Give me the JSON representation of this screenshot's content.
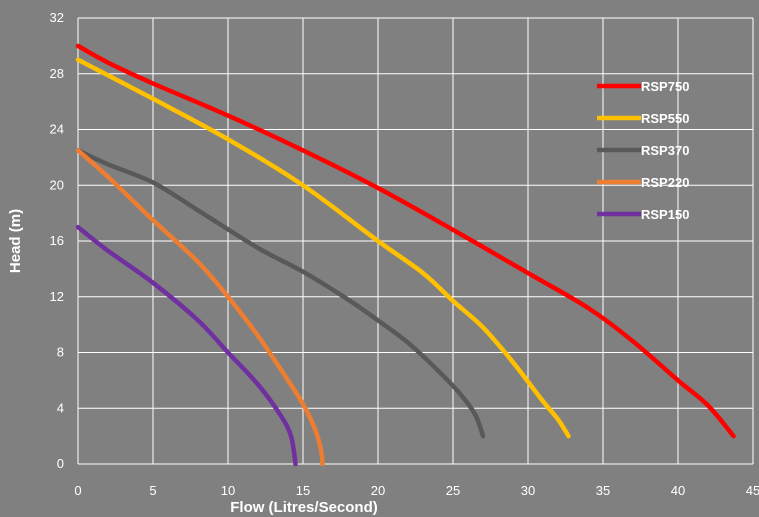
{
  "chart_data": {
    "type": "line",
    "title": "",
    "xlabel": "Flow (Litres/Second)",
    "ylabel": "Head (m)",
    "xlim": [
      0,
      45
    ],
    "ylim": [
      0,
      32
    ],
    "xticks": [
      "0",
      "5",
      "10",
      "15",
      "20",
      "25",
      "30",
      "35",
      "40",
      "45"
    ],
    "yticks": [
      "0",
      "4",
      "8",
      "12",
      "16",
      "20",
      "24",
      "28",
      "32"
    ],
    "grid": true,
    "legend_position": "top-right",
    "background": "#808080",
    "series": [
      {
        "name": "RSP750",
        "color": "#ff0000",
        "x": [
          0,
          2,
          5,
          10,
          15,
          20,
          25,
          30,
          34,
          37,
          40,
          42,
          43.7
        ],
        "y": [
          30,
          28.8,
          27.3,
          25,
          22.5,
          19.8,
          16.8,
          13.7,
          11.2,
          8.8,
          6,
          4.2,
          2
        ]
      },
      {
        "name": "RSP550",
        "color": "#ffc000",
        "x": [
          0,
          5,
          10,
          15,
          20,
          23,
          25,
          27,
          29,
          31,
          32,
          32.7
        ],
        "y": [
          29,
          26.2,
          23.3,
          20,
          16,
          13.7,
          11.7,
          9.8,
          7.3,
          4.5,
          3.2,
          2
        ]
      },
      {
        "name": "RSP370",
        "color": "#595959",
        "x": [
          0,
          2,
          5,
          8,
          12,
          15,
          18,
          20,
          22,
          24,
          25.5,
          26.5,
          27
        ],
        "y": [
          22.5,
          21.5,
          20.2,
          18.2,
          15.5,
          13.8,
          11.8,
          10.3,
          8.7,
          6.7,
          5,
          3.5,
          2
        ]
      },
      {
        "name": "RSP220",
        "color": "#ed7d31",
        "x": [
          0,
          2,
          5,
          8,
          10,
          12,
          14,
          15,
          15.8,
          16.2,
          16.3
        ],
        "y": [
          22.5,
          20.6,
          17.5,
          14.5,
          12,
          9.2,
          6,
          4.3,
          2.5,
          1,
          0
        ]
      },
      {
        "name": "RSP150",
        "color": "#7030a0",
        "x": [
          0,
          2,
          5,
          8,
          10,
          12,
          13.5,
          14.2,
          14.5
        ],
        "y": [
          17,
          15.3,
          13,
          10.3,
          8,
          5.7,
          3.5,
          2,
          0
        ]
      }
    ]
  }
}
